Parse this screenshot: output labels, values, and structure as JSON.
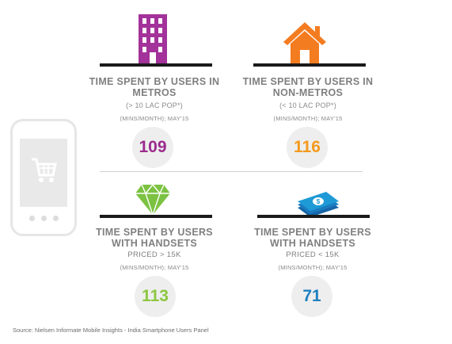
{
  "colors": {
    "purple": "#9b2b8f",
    "orange": "#f39a1d",
    "green": "#8cc63f",
    "blue": "#1f7fc0",
    "building_icon": "#a3329a",
    "house_icon": "#f47c20",
    "diamond_icon": "#7cc242",
    "money_icon": "#1e9ad6"
  },
  "icons": [
    "phone-cart-icon",
    "building-icon",
    "house-icon",
    "diamond-icon",
    "money-icon"
  ],
  "metros": {
    "title_line1": "TIME SPENT BY USERS IN",
    "title_line2": "METROS",
    "sub": "(> 10 LAC POP*)",
    "unit": "(MINS/MONTH); MAY'15",
    "value": "109"
  },
  "non_metros": {
    "title_line1": "TIME SPENT BY USERS IN",
    "title_line2": "NON-METROS",
    "sub": "(< 10 LAC POP*)",
    "unit": "(MINS/MONTH); MAY'15",
    "value": "116"
  },
  "handsets_high": {
    "title_line1": "TIME SPENT BY USERS",
    "title_line2": "WITH HANDSETS",
    "priced": "PRICED > 15K",
    "unit": "(MINS/MONTH); MAY'15",
    "value": "113"
  },
  "handsets_low": {
    "title_line1": "TIME SPENT BY USERS",
    "title_line2": "WITH HANDSETS",
    "priced": "PRICED < 15K",
    "unit": "(MINS/MONTH); MAY'15",
    "value": "71"
  },
  "source": "Source: Nielsen Informate Mobile Insights - India Smartphone Users Panel"
}
